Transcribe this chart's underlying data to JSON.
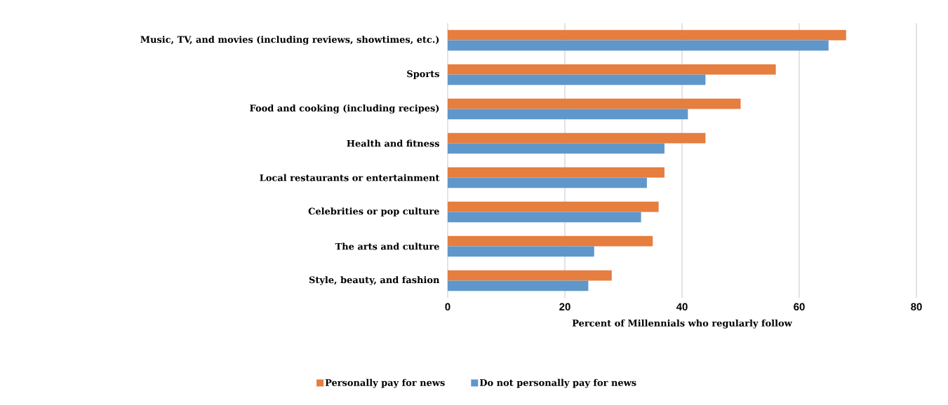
{
  "chart_data": {
    "type": "bar",
    "orientation": "horizontal",
    "xlabel": "Percent of Millennials who regularly follow",
    "categories": [
      "Music, TV, and movies (including reviews, showtimes, etc.)",
      "Sports",
      "Food and cooking (including recipes)",
      "Health and fitness",
      "Local restaurants or entertainment",
      "Celebrities or pop culture",
      "The arts and culture",
      "Style, beauty, and fashion"
    ],
    "series": [
      {
        "name": "Personally pay for news",
        "color": "#e57e3f",
        "values": [
          68,
          56,
          50,
          44,
          37,
          36,
          35,
          28
        ]
      },
      {
        "name": "Do not personally pay for news",
        "color": "#5f97cb",
        "values": [
          65,
          44,
          41,
          37,
          34,
          33,
          25,
          24
        ]
      }
    ],
    "xlim": [
      0,
      80
    ],
    "xticks": [
      0,
      20,
      40,
      60,
      80
    ],
    "grid": "x",
    "legend": "bottom"
  }
}
